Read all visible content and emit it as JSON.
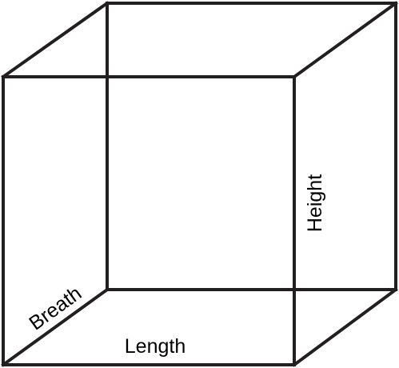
{
  "diagram": {
    "labels": {
      "length": "Length",
      "breath": "Breath",
      "height": "Height"
    },
    "colors": {
      "edge": "#231f20",
      "text": "#000000",
      "background": "#ffffff"
    }
  }
}
